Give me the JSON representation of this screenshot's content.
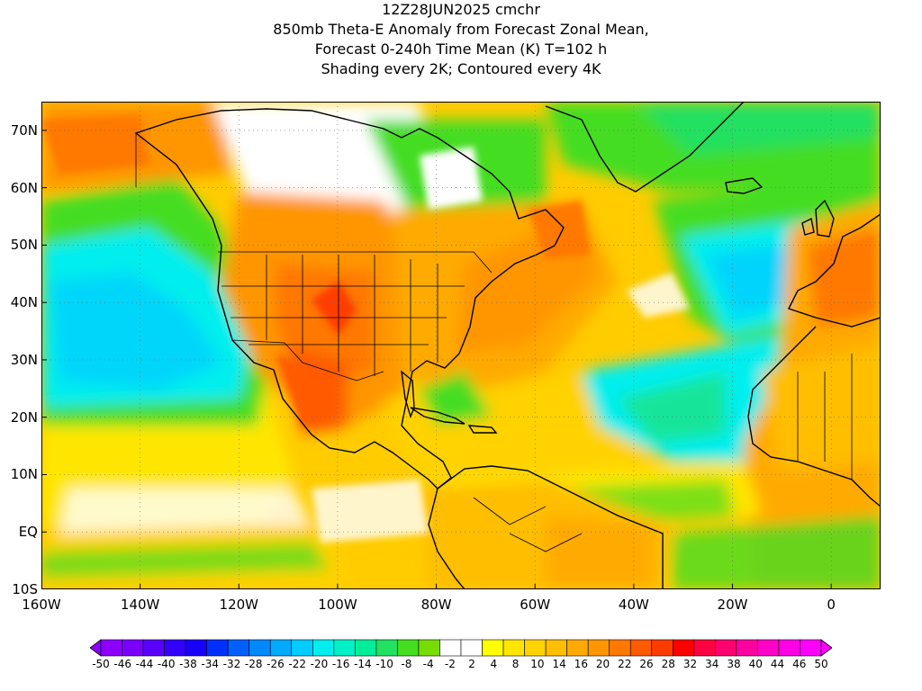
{
  "title": {
    "line1": "12Z28JUN2025 cmchr",
    "line2": "850mb Theta-E Anomaly from Forecast Zonal Mean,",
    "line3": "Forecast 0-240h Time Mean (K) T=102 h",
    "line4": "Shading every 2K; Contoured every 4K"
  },
  "map": {
    "lon_range": [
      -160,
      10
    ],
    "lat_range": [
      -10,
      75
    ],
    "lat_labels": [
      "70N",
      "60N",
      "50N",
      "40N",
      "30N",
      "20N",
      "10N",
      "EQ",
      "10S"
    ],
    "lat_values": [
      70,
      60,
      50,
      40,
      30,
      20,
      10,
      0,
      -10
    ],
    "lon_labels": [
      "160W",
      "140W",
      "120W",
      "100W",
      "80W",
      "60W",
      "40W",
      "20W",
      "0"
    ],
    "lon_values": [
      -160,
      -140,
      -120,
      -100,
      -80,
      -60,
      -40,
      -20,
      0
    ]
  },
  "colorbar": {
    "labels": [
      "-50",
      "-46",
      "-44",
      "-40",
      "-38",
      "-34",
      "-32",
      "-28",
      "-26",
      "-22",
      "-20",
      "-16",
      "-14",
      "-10",
      "-8",
      "-4",
      "-2",
      "2",
      "4",
      "8",
      "10",
      "14",
      "16",
      "20",
      "22",
      "26",
      "28",
      "32",
      "34",
      "38",
      "40",
      "44",
      "46",
      "50"
    ],
    "colors": [
      "#8c00ff",
      "#7a00ff",
      "#5a00ff",
      "#3300ff",
      "#1800ff",
      "#0030ff",
      "#0060ff",
      "#0088ff",
      "#00aaff",
      "#00ccff",
      "#00eeee",
      "#00f0c8",
      "#00ee99",
      "#22e060",
      "#44dd22",
      "#77dd00",
      "#ffffff",
      "#ffffff",
      "#ffff00",
      "#ffe600",
      "#ffd200",
      "#ffbe00",
      "#ffaa00",
      "#ff9600",
      "#ff7800",
      "#ff5a00",
      "#ff3c00",
      "#ff0000",
      "#ff0040",
      "#ff0070",
      "#ff00a0",
      "#ff00c8",
      "#ff00e6",
      "#ff00ff"
    ]
  }
}
